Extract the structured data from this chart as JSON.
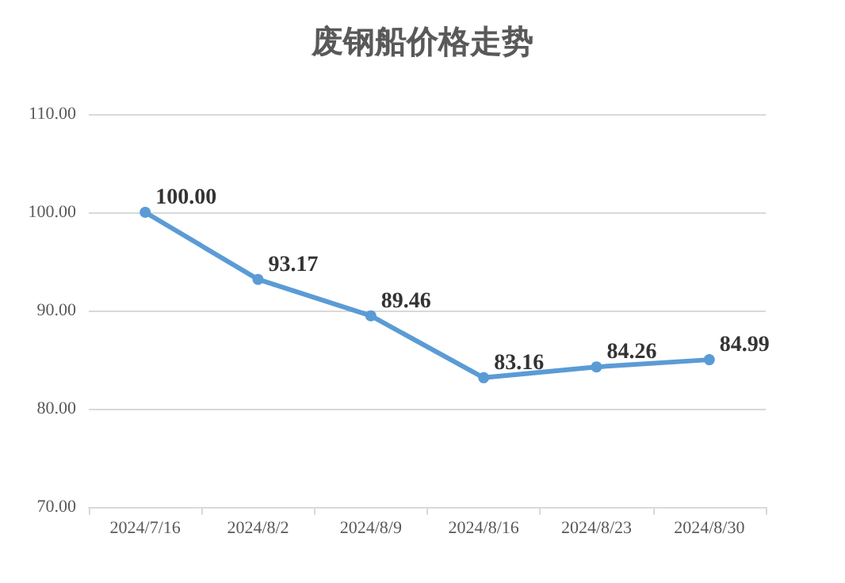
{
  "chart_data": {
    "type": "line",
    "title": "废钢船价格走势",
    "categories": [
      "2024/7/16",
      "2024/8/2",
      "2024/8/9",
      "2024/8/16",
      "2024/8/23",
      "2024/8/30"
    ],
    "series": [
      {
        "color": "#5b9bd5",
        "values": [
          100,
          93.17,
          89.46,
          83.16,
          84.26,
          84.99
        ],
        "value_labels": [
          "100.00",
          "93.17",
          "89.46",
          "83.16",
          "84.26",
          "84.99"
        ]
      }
    ],
    "ylim": [
      70,
      110
    ],
    "yticks": [
      {
        "value": 70,
        "label": "70.00"
      },
      {
        "value": 80,
        "label": "80.00"
      },
      {
        "value": 90,
        "label": "90.00"
      },
      {
        "value": 100,
        "label": "100.00"
      },
      {
        "value": 110,
        "label": "110.00"
      }
    ],
    "grid": "y",
    "marker": "circle",
    "line_style": "solid"
  }
}
